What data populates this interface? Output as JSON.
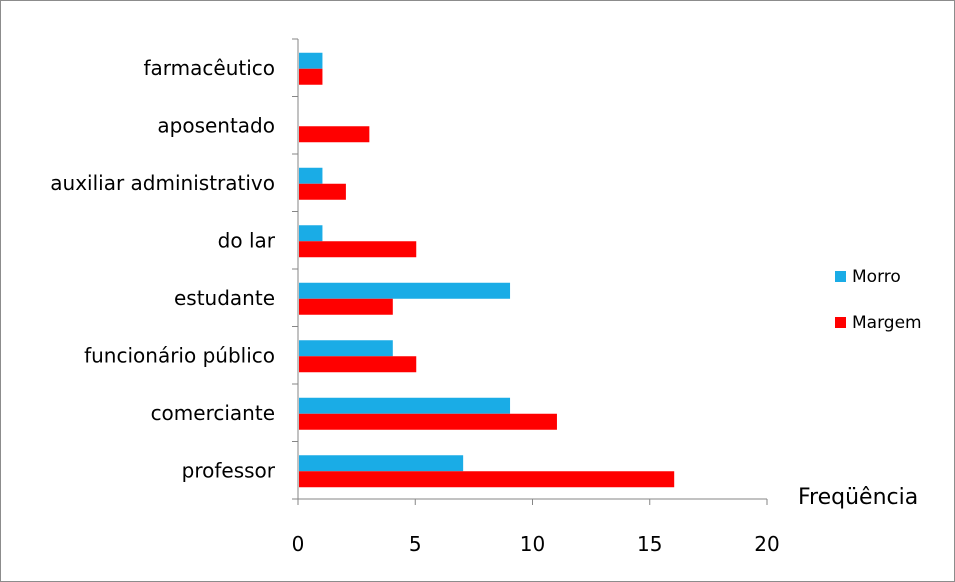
{
  "chart_data": {
    "type": "bar",
    "orientation": "horizontal",
    "categories": [
      "professor",
      "comerciante",
      "funcionário público",
      "estudante",
      "do lar",
      "auxiliar administrativo",
      "aposentado",
      "farmacêutico"
    ],
    "series": [
      {
        "name": "Morro",
        "color": "#1aace6",
        "values": [
          7,
          9,
          4,
          9,
          1,
          1,
          0,
          1
        ]
      },
      {
        "name": "Margem",
        "color": "#ff0000",
        "values": [
          16,
          11,
          5,
          4,
          5,
          2,
          3,
          1
        ]
      }
    ],
    "xlabel": "Freqüência",
    "xlim": [
      0,
      20
    ],
    "xticks": [
      0,
      5,
      10,
      15,
      20
    ],
    "grid": false,
    "legend_position": "right"
  }
}
